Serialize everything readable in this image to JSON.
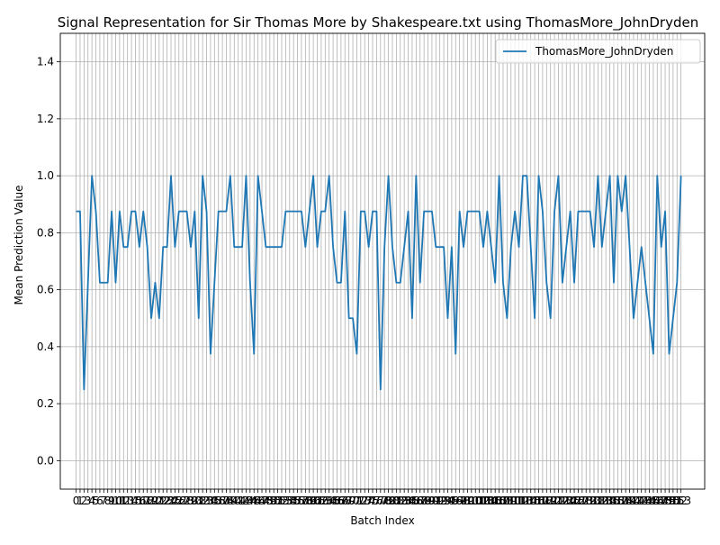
{
  "chart_data": {
    "type": "line",
    "title": "Signal Representation for Sir Thomas More by Shakespeare.txt using ThomasMore_JohnDryden",
    "xlabel": "Batch Index",
    "ylabel": "Mean Prediction Value",
    "xlim": [
      -4,
      159
    ],
    "ylim": [
      -0.1,
      1.5
    ],
    "y_ticks": [
      "0.0",
      "0.2",
      "0.4",
      "0.6",
      "0.8",
      "1.0",
      "1.2",
      "1.4"
    ],
    "grid": true,
    "legend_position": "top-right",
    "series": [
      {
        "name": "ThomasMore_JohnDryden",
        "color": "#1f77b4",
        "values": [
          0.875,
          0.875,
          0.25,
          0.625,
          1.0,
          0.875,
          0.625,
          0.625,
          0.625,
          0.875,
          0.625,
          0.875,
          0.75,
          0.75,
          0.875,
          0.875,
          0.75,
          0.875,
          0.75,
          0.5,
          0.625,
          0.5,
          0.75,
          0.75,
          1.0,
          0.75,
          0.875,
          0.875,
          0.875,
          0.75,
          0.875,
          0.5,
          1.0,
          0.875,
          0.375,
          0.625,
          0.875,
          0.875,
          0.875,
          1.0,
          0.75,
          0.75,
          0.75,
          1.0,
          0.625,
          0.375,
          1.0,
          0.875,
          0.75,
          0.75,
          0.75,
          0.75,
          0.75,
          0.875,
          0.875,
          0.875,
          0.875,
          0.875,
          0.75,
          0.875,
          1.0,
          0.75,
          0.875,
          0.875,
          1.0,
          0.75,
          0.625,
          0.625,
          0.875,
          0.5,
          0.5,
          0.375,
          0.875,
          0.875,
          0.75,
          0.875,
          0.875,
          0.25,
          0.75,
          1.0,
          0.75,
          0.625,
          0.625,
          0.75,
          0.875,
          0.5,
          1.0,
          0.625,
          0.875,
          0.875,
          0.875,
          0.75,
          0.75,
          0.75,
          0.5,
          0.75,
          0.375,
          0.875,
          0.75,
          0.875,
          0.875,
          0.875,
          0.875,
          0.75,
          0.875,
          0.75,
          0.625,
          1.0,
          0.625,
          0.5,
          0.75,
          0.875,
          0.75,
          1.0,
          1.0,
          0.75,
          0.5,
          1.0,
          0.875,
          0.625,
          0.5,
          0.875,
          1.0,
          0.625,
          0.75,
          0.875,
          0.625,
          0.875,
          0.875,
          0.875,
          0.875,
          0.75,
          1.0,
          0.75,
          0.875,
          1.0,
          0.625,
          1.0,
          0.875,
          1.0,
          0.75,
          0.5,
          0.625,
          0.75,
          0.625,
          0.5,
          0.375,
          1.0,
          0.75,
          0.875,
          0.375,
          0.5,
          0.625,
          1.0
        ]
      }
    ]
  }
}
